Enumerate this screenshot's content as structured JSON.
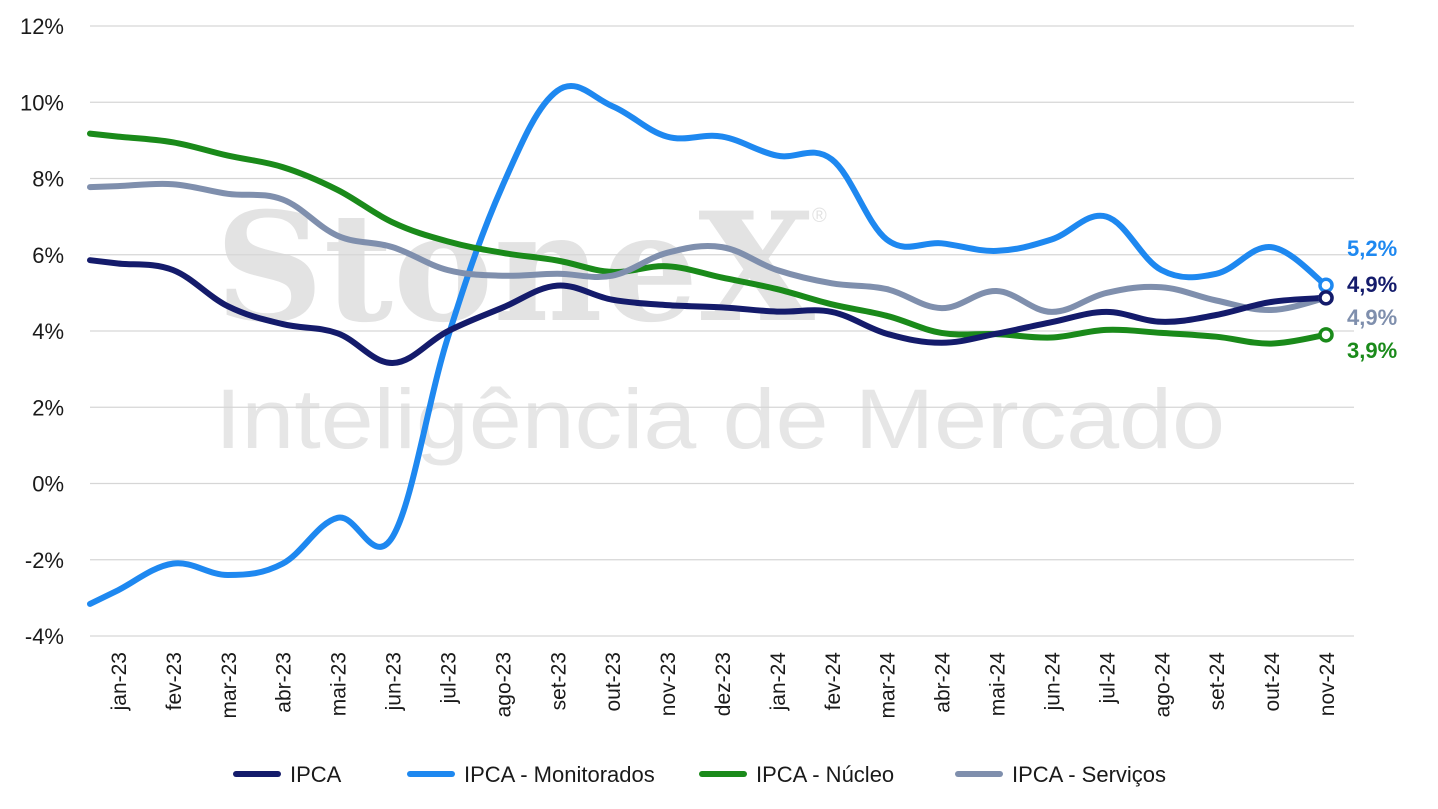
{
  "watermark": {
    "brand": "StoneX",
    "registered": "®",
    "subtitle": "Inteligência de Mercado"
  },
  "chart_data": {
    "type": "line",
    "title": "",
    "xlabel": "",
    "ylabel": "",
    "ylim": [
      -4,
      12
    ],
    "yticks": [
      -4,
      -2,
      0,
      2,
      4,
      6,
      8,
      10,
      12
    ],
    "ytick_labels": [
      "-4%",
      "-2%",
      "0%",
      "2%",
      "4%",
      "6%",
      "8%",
      "10%",
      "12%"
    ],
    "grid": true,
    "legend_position": "bottom",
    "categories": [
      "jan-23",
      "fev-23",
      "mar-23",
      "abr-23",
      "mai-23",
      "jun-23",
      "jul-23",
      "ago-23",
      "set-23",
      "out-23",
      "nov-23",
      "dez-23",
      "jan-24",
      "fev-24",
      "mar-24",
      "abr-24",
      "mai-24",
      "jun-24",
      "jul-24",
      "ago-24",
      "set-24",
      "out-24",
      "nov-24"
    ],
    "series": [
      {
        "name": "IPCA",
        "color": "#141b6b",
        "values": [
          5.77,
          5.6,
          4.65,
          4.18,
          3.94,
          3.16,
          3.99,
          4.61,
          5.19,
          4.82,
          4.68,
          4.62,
          4.51,
          4.5,
          3.93,
          3.69,
          3.93,
          4.23,
          4.5,
          4.24,
          4.42,
          4.76,
          4.87
        ],
        "end_label": "4,9%"
      },
      {
        "name": "IPCA - Monitorados",
        "color": "#1e88f0",
        "values": [
          -2.8,
          -2.1,
          -2.4,
          -2.1,
          -0.9,
          -1.4,
          3.8,
          7.8,
          10.3,
          9.9,
          9.1,
          9.1,
          8.6,
          8.5,
          6.4,
          6.3,
          6.1,
          6.4,
          7.0,
          5.6,
          5.5,
          6.2,
          5.2
        ],
        "end_label": "5,2%"
      },
      {
        "name": "IPCA - Núcleo",
        "color": "#1a8a1a",
        "values": [
          9.1,
          8.95,
          8.6,
          8.3,
          7.7,
          6.85,
          6.35,
          6.05,
          5.85,
          5.55,
          5.7,
          5.4,
          5.1,
          4.7,
          4.4,
          3.95,
          3.92,
          3.83,
          4.03,
          3.95,
          3.85,
          3.67,
          3.9
        ],
        "end_label": "3,9%"
      },
      {
        "name": "IPCA - Serviços",
        "color": "#7f8fad",
        "values": [
          7.8,
          7.85,
          7.6,
          7.45,
          6.5,
          6.2,
          5.6,
          5.45,
          5.5,
          5.45,
          6.05,
          6.2,
          5.6,
          5.25,
          5.1,
          4.6,
          5.05,
          4.5,
          5.0,
          5.15,
          4.8,
          4.55,
          4.87
        ],
        "end_label": "4,9%"
      }
    ]
  }
}
